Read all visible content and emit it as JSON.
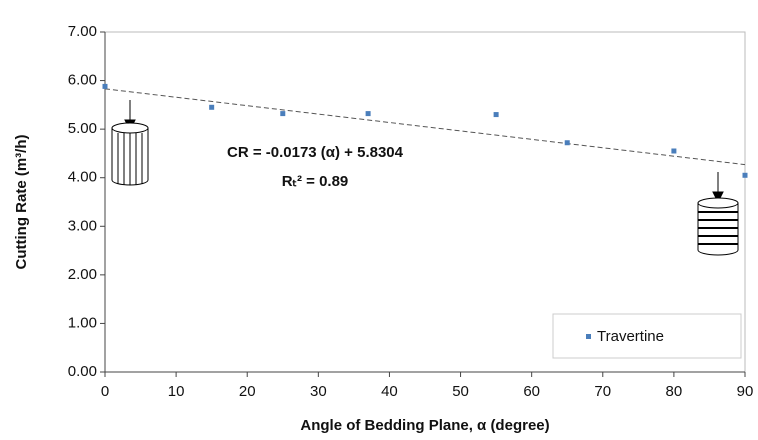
{
  "chart_data": {
    "type": "scatter",
    "xlabel": "Angle of Bedding Plane, α (degree)",
    "ylabel": "Cutting Rate  (m³/h)",
    "annotations": [
      "CR = -0.0173 (α) + 5.8304",
      "Rₜ² = 0.89"
    ],
    "series": [
      {
        "name": "Travertine",
        "color": "#4a7ebb",
        "x": [
          0,
          15,
          25,
          37,
          55,
          65,
          80,
          90
        ],
        "values": [
          5.88,
          5.45,
          5.32,
          5.32,
          5.3,
          4.72,
          4.55,
          4.05
        ]
      }
    ],
    "trendline": {
      "x": [
        0,
        90
      ],
      "values": [
        5.83,
        4.27
      ]
    },
    "xlim": [
      0,
      90
    ],
    "xticks": [
      0,
      10,
      20,
      30,
      40,
      50,
      60,
      70,
      80,
      90
    ],
    "ylim": [
      0,
      7
    ],
    "yticks": [
      {
        "value": 0,
        "label": "0.00"
      },
      {
        "value": 1,
        "label": "1.00"
      },
      {
        "value": 2,
        "label": "2.00"
      },
      {
        "value": 3,
        "label": "3.00"
      },
      {
        "value": 4,
        "label": "4.00"
      },
      {
        "value": 5,
        "label": "5.00"
      },
      {
        "value": 6,
        "label": "6.00"
      },
      {
        "value": 7,
        "label": "7.00"
      }
    ],
    "legend": "bottom-right"
  }
}
